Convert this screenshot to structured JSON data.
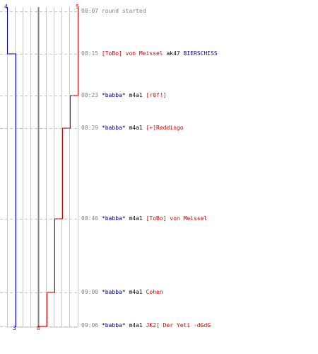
{
  "colors": {
    "blue": "#0000cc",
    "red": "#cc0000",
    "grid": "#c8c8c8",
    "grid_dash": "#c8c8c8",
    "axis": "#808080"
  },
  "scores": {
    "blue_top": "4",
    "red_top": "5",
    "blue_bottom": "3",
    "red_bottom": "0"
  },
  "events": [
    {
      "time": "08:07",
      "kind": "message",
      "text": "round started"
    },
    {
      "time": "08:15",
      "kind": "kill",
      "killer": "[ToBo] von Meissel",
      "killer_team": "red",
      "weapon": "ak47",
      "victim": "BIERSCHISS",
      "victim_team": "blue"
    },
    {
      "time": "08:23",
      "kind": "kill",
      "killer": "*babba*",
      "killer_team": "blue",
      "weapon": "m4a1",
      "victim": "[r0f!]",
      "victim_team": "red"
    },
    {
      "time": "08:29",
      "kind": "kill",
      "killer": "*babba*",
      "killer_team": "blue",
      "weapon": "m4a1",
      "victim": "[+]Reddingo",
      "victim_team": "red"
    },
    {
      "time": "08:46",
      "kind": "kill",
      "killer": "*babba*",
      "killer_team": "blue",
      "weapon": "m4a1",
      "victim": "[ToBo] von Meissel",
      "victim_team": "red"
    },
    {
      "time": "09:00",
      "kind": "kill",
      "killer": "*babba*",
      "killer_team": "blue",
      "weapon": "m4a1",
      "victim": "Cohen",
      "victim_team": "red"
    },
    {
      "time": "09:06",
      "kind": "kill",
      "killer": "*babba*",
      "killer_team": "blue",
      "weapon": "m4a1",
      "victim": "JK2[ Der Yeti -dGdG",
      "victim_team": "red"
    }
  ],
  "chart_data": {
    "type": "line",
    "x": [
      "08:07",
      "08:15",
      "08:23",
      "08:29",
      "08:46",
      "09:00",
      "09:06"
    ],
    "ylim": [
      0,
      5
    ],
    "series": [
      {
        "values": [
          4,
          3,
          3,
          3,
          3,
          3,
          3
        ],
        "color": "#0000cc"
      },
      {
        "values": [
          5,
          5,
          4,
          3,
          2,
          1,
          0
        ],
        "color": "#cc0000"
      }
    ]
  }
}
